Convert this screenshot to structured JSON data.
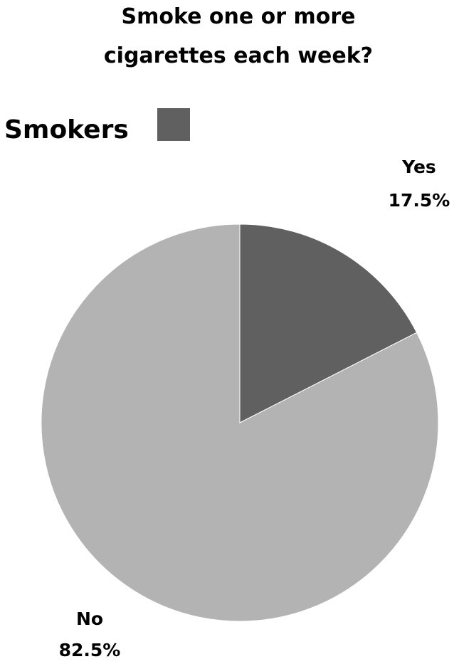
{
  "chart_data": {
    "type": "pie",
    "title_lines": [
      "Smoke one or more",
      "cigarettes each week?"
    ],
    "legend": [
      {
        "name": "Smokers",
        "color": "#606060"
      }
    ],
    "slices": [
      {
        "label": "Yes",
        "value": 17.5,
        "value_text": "17.5%",
        "color": "#606060"
      },
      {
        "label": "No",
        "value": 82.5,
        "value_text": "82.5%",
        "color": "#b3b3b3"
      }
    ],
    "start_angle": "12 o'clock",
    "direction": "clockwise"
  }
}
